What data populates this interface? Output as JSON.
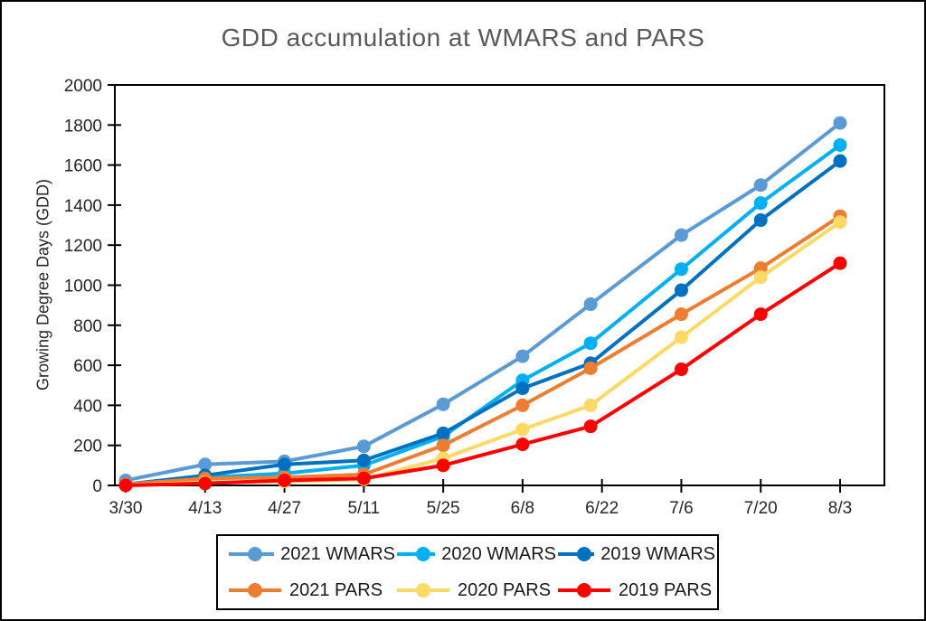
{
  "chart_data": {
    "type": "line",
    "title": "GDD accumulation at WMARS and PARS",
    "xlabel": "",
    "ylabel": "Growing Degree Days (GDD)",
    "ylim": [
      0,
      2000
    ],
    "yticks": [
      0,
      200,
      400,
      600,
      800,
      1000,
      1200,
      1400,
      1600,
      1800,
      2000
    ],
    "categories": [
      "3/30",
      "4/13",
      "4/27",
      "5/11",
      "5/25",
      "6/8",
      "6/22",
      "7/6",
      "7/20",
      "8/3"
    ],
    "x_days": [
      0,
      14,
      28,
      42,
      56,
      70,
      82,
      98,
      112,
      126
    ],
    "tick_days": [
      0,
      14,
      28,
      42,
      56,
      70,
      84,
      98,
      112,
      126
    ],
    "grid": false,
    "legend_position": "bottom",
    "marker": "circle",
    "series": [
      {
        "name": "2021 WMARS",
        "color": "#5B9BD5",
        "values": [
          25,
          105,
          120,
          195,
          405,
          645,
          905,
          1250,
          1500,
          1810
        ]
      },
      {
        "name": "2020 WMARS",
        "color": "#00B0F0",
        "values": [
          5,
          40,
          60,
          100,
          245,
          525,
          710,
          1080,
          1410,
          1700
        ]
      },
      {
        "name": "2019 WMARS",
        "color": "#0070C0",
        "values": [
          5,
          50,
          105,
          125,
          260,
          485,
          610,
          975,
          1325,
          1620
        ]
      },
      {
        "name": "2021 PARS",
        "color": "#ED7D31",
        "values": [
          5,
          35,
          40,
          55,
          200,
          400,
          585,
          855,
          1085,
          1345
        ]
      },
      {
        "name": "2020 PARS",
        "color": "#FFD966",
        "values": [
          0,
          15,
          20,
          30,
          135,
          280,
          400,
          740,
          1040,
          1315
        ]
      },
      {
        "name": "2019 PARS",
        "color": "#FF0000",
        "values": [
          0,
          10,
          25,
          35,
          100,
          205,
          295,
          580,
          855,
          1110
        ]
      }
    ],
    "title_color": "#595959",
    "axis_color": "#000000",
    "tick_label_color": "#262626"
  }
}
